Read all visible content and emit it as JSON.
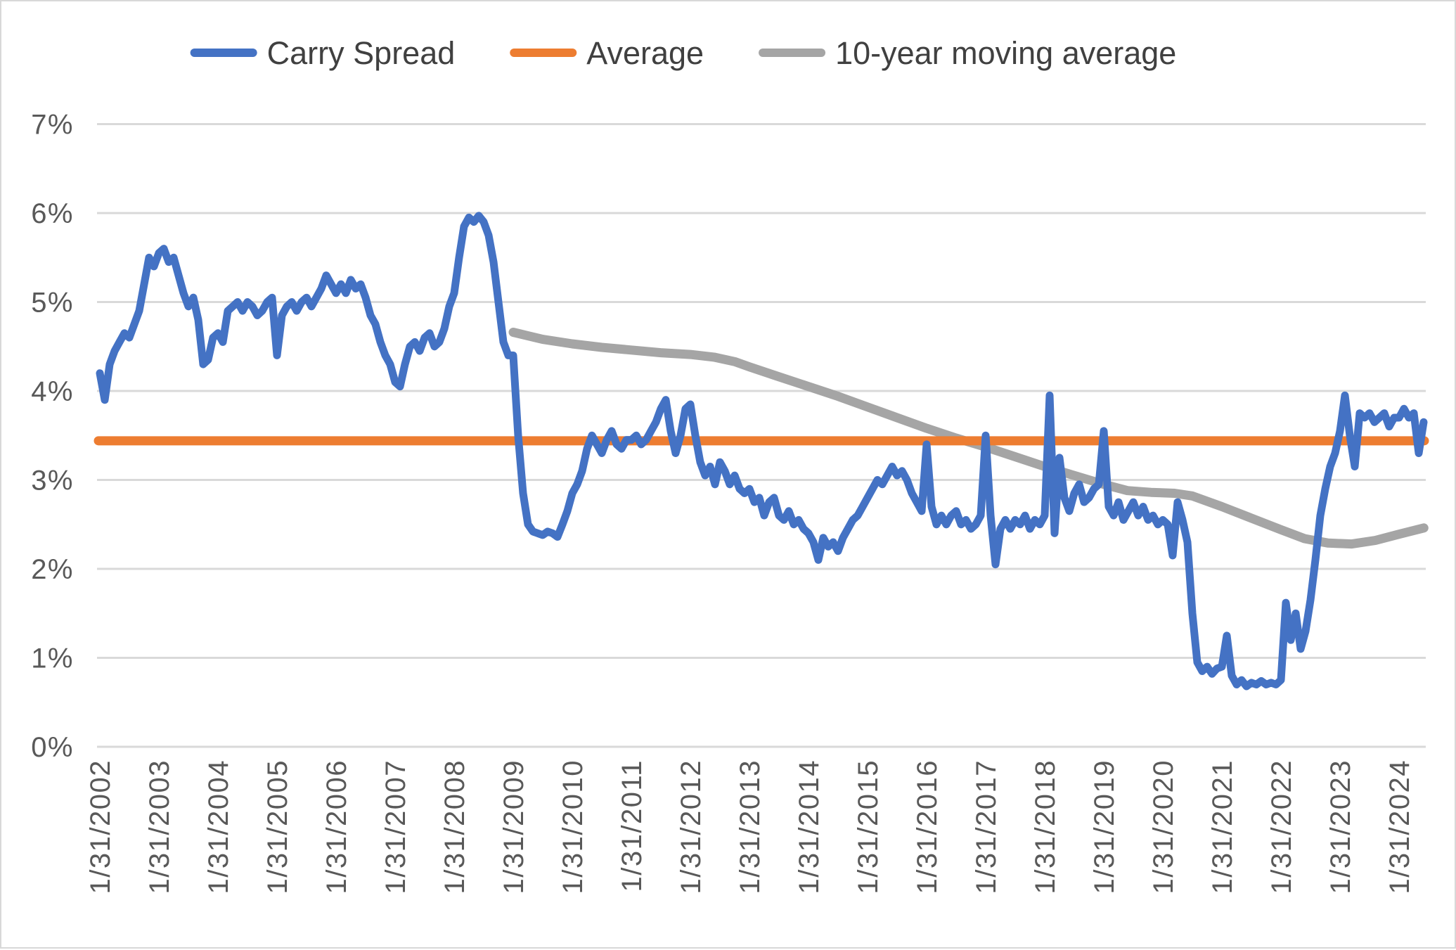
{
  "legend": {
    "items": [
      {
        "label": "Carry Spread",
        "color": "#4472C4"
      },
      {
        "label": "Average",
        "color": "#ED7D31"
      },
      {
        "label": "10-year moving average",
        "color": "#A5A5A5"
      }
    ]
  },
  "colors": {
    "carry_spread": "#4472C4",
    "average": "#ED7D31",
    "moving_average": "#A5A5A5",
    "gridline": "#D9D9D9",
    "axis_text": "#595959",
    "legend_text": "#404040",
    "background": "#FFFFFF",
    "frame_border": "#D8D8D8"
  },
  "chart_data": {
    "type": "line",
    "title": "",
    "xlabel": "",
    "ylabel": "",
    "grid": "horizontal",
    "legend_position": "top",
    "ylim": [
      0,
      7
    ],
    "y_tick_labels": [
      "7%",
      "6%",
      "5%",
      "4%",
      "3%",
      "2%",
      "1%",
      "0%"
    ],
    "y_tick_values": [
      7,
      6,
      5,
      4,
      3,
      2,
      1,
      0
    ],
    "x_tick_labels": [
      "1/31/2002",
      "1/31/2003",
      "1/31/2004",
      "1/31/2005",
      "1/31/2006",
      "1/31/2007",
      "1/31/2008",
      "1/31/2009",
      "1/31/2010",
      "1/31/2011",
      "1/31/2012",
      "1/31/2013",
      "1/31/2014",
      "1/31/2015",
      "1/31/2016",
      "1/31/2017",
      "1/31/2018",
      "1/31/2019",
      "1/31/2020",
      "1/31/2021",
      "1/31/2022",
      "1/31/2023",
      "1/31/2024"
    ],
    "series": [
      {
        "name": "Carry Spread",
        "kind": "monthly",
        "start_year": 2002,
        "start_month": 1,
        "unit": "percent",
        "values": [
          4.2,
          3.9,
          4.3,
          4.45,
          4.55,
          4.65,
          4.6,
          4.75,
          4.9,
          5.2,
          5.5,
          5.4,
          5.55,
          5.6,
          5.45,
          5.5,
          5.3,
          5.1,
          4.95,
          5.05,
          4.8,
          4.3,
          4.35,
          4.6,
          4.65,
          4.55,
          4.9,
          4.95,
          5.0,
          4.9,
          5.0,
          4.95,
          4.85,
          4.9,
          5.0,
          5.05,
          4.4,
          4.85,
          4.95,
          5.0,
          4.9,
          5.0,
          5.05,
          4.95,
          5.05,
          5.15,
          5.3,
          5.2,
          5.1,
          5.2,
          5.1,
          5.25,
          5.15,
          5.2,
          5.05,
          4.85,
          4.75,
          4.55,
          4.4,
          4.3,
          4.1,
          4.05,
          4.3,
          4.5,
          4.55,
          4.45,
          4.6,
          4.65,
          4.5,
          4.55,
          4.7,
          4.95,
          5.1,
          5.5,
          5.85,
          5.95,
          5.9,
          5.97,
          5.9,
          5.75,
          5.45,
          5.0,
          4.55,
          4.4,
          4.4,
          3.5,
          2.85,
          2.5,
          2.42,
          2.4,
          2.38,
          2.42,
          2.4,
          2.36,
          2.5,
          2.65,
          2.85,
          2.95,
          3.1,
          3.35,
          3.5,
          3.4,
          3.3,
          3.45,
          3.55,
          3.4,
          3.35,
          3.45,
          3.45,
          3.5,
          3.4,
          3.45,
          3.55,
          3.65,
          3.8,
          3.9,
          3.55,
          3.3,
          3.5,
          3.8,
          3.85,
          3.5,
          3.2,
          3.05,
          3.15,
          2.95,
          3.2,
          3.1,
          2.95,
          3.05,
          2.9,
          2.85,
          2.9,
          2.75,
          2.8,
          2.6,
          2.75,
          2.8,
          2.6,
          2.55,
          2.65,
          2.5,
          2.55,
          2.45,
          2.4,
          2.3,
          2.1,
          2.35,
          2.25,
          2.3,
          2.2,
          2.35,
          2.45,
          2.55,
          2.6,
          2.7,
          2.8,
          2.9,
          3.0,
          2.95,
          3.05,
          3.15,
          3.05,
          3.1,
          3.0,
          2.85,
          2.75,
          2.65,
          3.4,
          2.7,
          2.5,
          2.6,
          2.5,
          2.6,
          2.65,
          2.5,
          2.55,
          2.45,
          2.5,
          2.6,
          3.5,
          2.6,
          2.05,
          2.45,
          2.55,
          2.45,
          2.55,
          2.5,
          2.6,
          2.45,
          2.55,
          2.5,
          2.6,
          3.95,
          2.4,
          3.25,
          2.8,
          2.65,
          2.85,
          2.95,
          2.75,
          2.8,
          2.9,
          2.95,
          3.55,
          2.7,
          2.6,
          2.75,
          2.55,
          2.65,
          2.75,
          2.6,
          2.7,
          2.55,
          2.6,
          2.5,
          2.55,
          2.5,
          2.15,
          2.75,
          2.55,
          2.3,
          1.5,
          0.95,
          0.85,
          0.9,
          0.82,
          0.88,
          0.9,
          1.25,
          0.8,
          0.7,
          0.75,
          0.68,
          0.72,
          0.7,
          0.74,
          0.7,
          0.72,
          0.7,
          0.75,
          1.62,
          1.2,
          1.5,
          1.1,
          1.3,
          1.65,
          2.1,
          2.6,
          2.9,
          3.15,
          3.3,
          3.55,
          3.95,
          3.5,
          3.15,
          3.75,
          3.7,
          3.75,
          3.65,
          3.7,
          3.75,
          3.6,
          3.7,
          3.7,
          3.8,
          3.7,
          3.75,
          3.3,
          3.65
        ]
      },
      {
        "name": "Average",
        "kind": "constant",
        "unit": "percent",
        "value": 3.44
      },
      {
        "name": "10-year moving average",
        "kind": "anchors",
        "unit": "percent",
        "points": [
          [
            2009.0,
            4.66
          ],
          [
            2009.25,
            4.62
          ],
          [
            2009.5,
            4.58
          ],
          [
            2010.0,
            4.53
          ],
          [
            2010.5,
            4.49
          ],
          [
            2011.0,
            4.46
          ],
          [
            2011.5,
            4.43
          ],
          [
            2012.0,
            4.41
          ],
          [
            2012.4,
            4.38
          ],
          [
            2012.75,
            4.33
          ],
          [
            2013.0,
            4.27
          ],
          [
            2013.5,
            4.16
          ],
          [
            2014.0,
            4.05
          ],
          [
            2014.5,
            3.94
          ],
          [
            2015.0,
            3.82
          ],
          [
            2015.5,
            3.7
          ],
          [
            2016.0,
            3.58
          ],
          [
            2016.5,
            3.47
          ],
          [
            2017.0,
            3.37
          ],
          [
            2017.5,
            3.26
          ],
          [
            2018.0,
            3.15
          ],
          [
            2018.5,
            3.05
          ],
          [
            2019.0,
            2.95
          ],
          [
            2019.4,
            2.88
          ],
          [
            2019.8,
            2.86
          ],
          [
            2020.2,
            2.85
          ],
          [
            2020.5,
            2.82
          ],
          [
            2021.0,
            2.7
          ],
          [
            2021.5,
            2.57
          ],
          [
            2022.0,
            2.44
          ],
          [
            2022.4,
            2.34
          ],
          [
            2022.8,
            2.29
          ],
          [
            2023.2,
            2.28
          ],
          [
            2023.6,
            2.32
          ],
          [
            2024.0,
            2.39
          ],
          [
            2024.42,
            2.46
          ]
        ]
      }
    ]
  }
}
